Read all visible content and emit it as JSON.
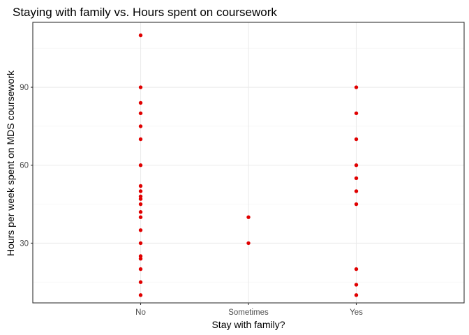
{
  "chart_data": {
    "type": "scatter",
    "title": "Staying with family vs. Hours spent on coursework",
    "xlabel": "Stay with family?",
    "ylabel": "Hours per week spent on MDS coursework",
    "categories": [
      "No",
      "Sometimes",
      "Yes"
    ],
    "y_ticks": [
      30,
      60,
      90
    ],
    "y_tick_labels": [
      "30",
      "60",
      "90"
    ],
    "y_minor_ticks": [
      15,
      45,
      75,
      105
    ],
    "ylim": [
      7,
      115
    ],
    "grid": true,
    "legend": "none",
    "point_color": "#E00000",
    "points": [
      {
        "x": "No",
        "y": 110
      },
      {
        "x": "No",
        "y": 90
      },
      {
        "x": "No",
        "y": 84
      },
      {
        "x": "No",
        "y": 80
      },
      {
        "x": "No",
        "y": 75
      },
      {
        "x": "No",
        "y": 70
      },
      {
        "x": "No",
        "y": 60
      },
      {
        "x": "No",
        "y": 52
      },
      {
        "x": "No",
        "y": 50
      },
      {
        "x": "No",
        "y": 48
      },
      {
        "x": "No",
        "y": 47
      },
      {
        "x": "No",
        "y": 45
      },
      {
        "x": "No",
        "y": 42
      },
      {
        "x": "No",
        "y": 40
      },
      {
        "x": "No",
        "y": 35
      },
      {
        "x": "No",
        "y": 30
      },
      {
        "x": "No",
        "y": 25
      },
      {
        "x": "No",
        "y": 24
      },
      {
        "x": "No",
        "y": 20
      },
      {
        "x": "No",
        "y": 15
      },
      {
        "x": "No",
        "y": 10
      },
      {
        "x": "Sometimes",
        "y": 40
      },
      {
        "x": "Sometimes",
        "y": 30
      },
      {
        "x": "Yes",
        "y": 90
      },
      {
        "x": "Yes",
        "y": 80
      },
      {
        "x": "Yes",
        "y": 70
      },
      {
        "x": "Yes",
        "y": 60
      },
      {
        "x": "Yes",
        "y": 55
      },
      {
        "x": "Yes",
        "y": 50
      },
      {
        "x": "Yes",
        "y": 45
      },
      {
        "x": "Yes",
        "y": 20
      },
      {
        "x": "Yes",
        "y": 14
      },
      {
        "x": "Yes",
        "y": 10
      }
    ]
  }
}
